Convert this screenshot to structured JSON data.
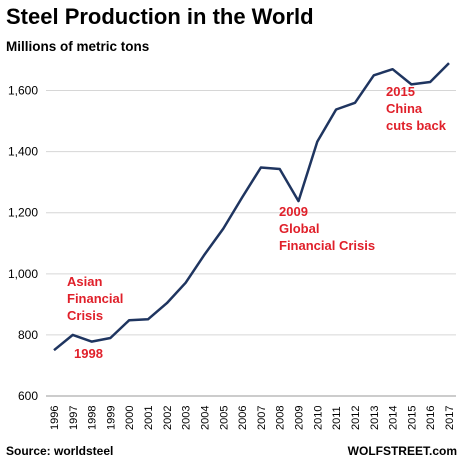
{
  "header": {
    "title": "Steel Production in the World",
    "subtitle": "Millions of metric tons"
  },
  "footer": {
    "source": "Source: worldsteel",
    "site": "WOLFSTREET.com"
  },
  "chart_data": {
    "type": "line",
    "title": "Steel Production in the World",
    "ylabel": "Millions of metric tons",
    "xlabel": "",
    "ylim": [
      600,
      1700
    ],
    "yticks": [
      600,
      800,
      1000,
      1200,
      1400,
      1600
    ],
    "ytick_labels": [
      "600",
      "800",
      "1,000",
      "1,200",
      "1,400",
      "1,600"
    ],
    "grid": "horizontal",
    "x": [
      "1996",
      "1997",
      "1998",
      "1999",
      "2000",
      "2001",
      "2002",
      "2003",
      "2004",
      "2005",
      "2006",
      "2007",
      "2008",
      "2009",
      "2010",
      "2011",
      "2012",
      "2013",
      "2014",
      "2015",
      "2016",
      "2017"
    ],
    "series": [
      {
        "values": [
          750,
          800,
          778,
          790,
          848,
          851,
          904,
          971,
          1063,
          1148,
          1250,
          1348,
          1343,
          1238,
          1433,
          1538,
          1560,
          1650,
          1670,
          1620,
          1628,
          1690
        ],
        "color": "#1f3560"
      }
    ],
    "annotations": [
      {
        "lines": [
          "Asian",
          "Financial",
          "Crisis"
        ],
        "color": "#e0202a"
      },
      {
        "lines": [
          "1998"
        ],
        "color": "#e0202a"
      },
      {
        "lines": [
          "2009",
          "Global",
          "Financial Crisis"
        ],
        "color": "#e0202a"
      },
      {
        "lines": [
          "2015",
          "China",
          "cuts back"
        ],
        "color": "#e0202a"
      }
    ]
  }
}
